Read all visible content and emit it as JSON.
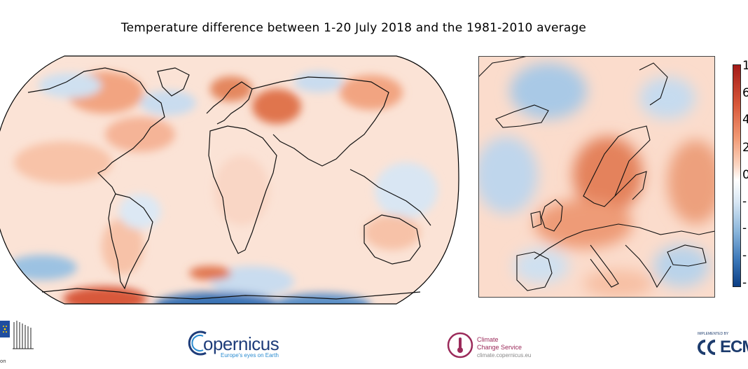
{
  "title": "Temperature difference between 1-20 July 2018 and the 1981-2010 average",
  "colors": {
    "warm_light": "#fbd3bf",
    "warm_mid": "#f2a481",
    "warm_strong": "#d8603f",
    "cool_light": "#dbe7f3",
    "cool_mid": "#9cc2e2",
    "cool_strong": "#2a62a8",
    "coastline": "#111111"
  },
  "colorbar": {
    "colors": [
      "#0b3d83",
      "#3b77b8",
      "#8bb6db",
      "#d7e6f3",
      "#ffffff",
      "#fbd4c0",
      "#f19a75",
      "#d8583a",
      "#a31a18"
    ],
    "tick_labels": [
      "1",
      "6",
      "4",
      "2",
      "0",
      "-",
      "-",
      "-",
      "-"
    ]
  },
  "logos": {
    "eu_text": "on",
    "copernicus_word": "opernicus",
    "copernicus_tagline": "Europe's eyes on Earth",
    "c3s_name_line1": "Climate",
    "c3s_name_line2": "Change Service",
    "c3s_url": "climate.copernicus.eu",
    "ecmwf_small": "IMPLEMENTED BY",
    "ecmwf_word": "ECM"
  }
}
